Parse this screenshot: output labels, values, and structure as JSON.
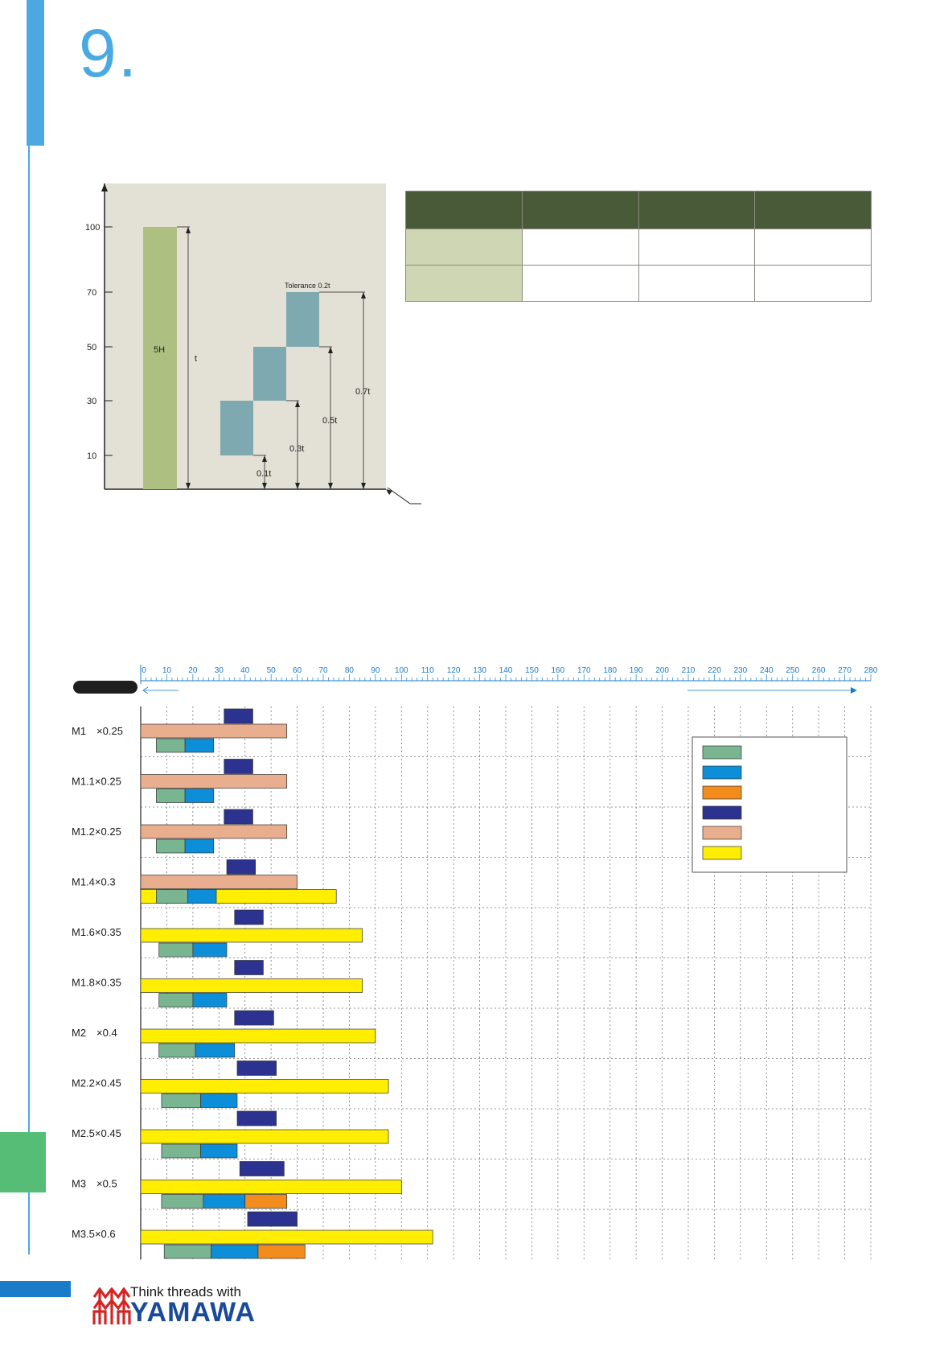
{
  "chapter": {
    "number": "9."
  },
  "colors": {
    "accent_blue": "#4aa9e3",
    "side_tab_green": "#56bd76",
    "table_header_bg": "#485a38",
    "table_row_head_bg": "#cfd6b3",
    "diagram_bg": "#e3e1d6",
    "diagram_5h_bar": "#aec081",
    "diagram_tol_block": "#7fa9b0",
    "bar_green": "#7ab592",
    "bar_blue": "#0d8ed8",
    "bar_orange": "#f28c1c",
    "bar_navy": "#2c3290",
    "bar_salmon": "#e9ae8d",
    "bar_yellow": "#ffee00",
    "logo_red": "#d42525",
    "logo_blue": "#1a4a9a"
  },
  "diagram": {
    "y_ticks": [
      "100",
      "70",
      "50",
      "30",
      "10"
    ],
    "bar_label": "5H",
    "t_label": "t",
    "tolerance_label": "Tolerance 0.2t",
    "dim_labels": [
      "0.1t",
      "0.3t",
      "0.5t",
      "0.7t"
    ]
  },
  "spec_table": {
    "header": [
      "",
      "",
      "",
      ""
    ],
    "rows": [
      [
        "",
        "",
        "",
        ""
      ],
      [
        "",
        "",
        "",
        ""
      ]
    ]
  },
  "ruler": {
    "ticks": [
      "0",
      "10",
      "20",
      "30",
      "40",
      "50",
      "60",
      "70",
      "80",
      "90",
      "100",
      "110",
      "120",
      "130",
      "140",
      "150",
      "160",
      "170",
      "180",
      "190",
      "200",
      "210",
      "220",
      "230",
      "240",
      "250",
      "260",
      "270",
      "280"
    ]
  },
  "legend": {
    "swatches": [
      "#7ab592",
      "#0d8ed8",
      "#f28c1c",
      "#2c3290",
      "#e9ae8d",
      "#ffee00"
    ]
  },
  "chart_data": {
    "type": "bar",
    "x_axis": {
      "min": 0,
      "max": 280,
      "step": 10
    },
    "series_colors": {
      "green": "#7ab592",
      "blue": "#0d8ed8",
      "orange": "#f28c1c",
      "navy": "#2c3290",
      "salmon": "#e9ae8d",
      "yellow": "#ffee00"
    },
    "categories": [
      "M1　×0.25",
      "M1.1×0.25",
      "M1.2×0.25",
      "M1.4×0.3",
      "M1.6×0.35",
      "M1.8×0.35",
      "M2　×0.4",
      "M2.2×0.45",
      "M2.5×0.45",
      "M3　×0.5",
      "M3.5×0.6"
    ],
    "rows": [
      {
        "navy": [
          32,
          43
        ],
        "salmon": [
          0,
          56
        ],
        "green": [
          6,
          17
        ],
        "blue": [
          17,
          28
        ]
      },
      {
        "navy": [
          32,
          43
        ],
        "salmon": [
          0,
          56
        ],
        "green": [
          6,
          17
        ],
        "blue": [
          17,
          28
        ]
      },
      {
        "navy": [
          32,
          43
        ],
        "salmon": [
          0,
          56
        ],
        "green": [
          6,
          17
        ],
        "blue": [
          17,
          28
        ]
      },
      {
        "navy": [
          33,
          44
        ],
        "salmon": [
          0,
          60
        ],
        "yellow": [
          0,
          75
        ],
        "green": [
          6,
          18
        ],
        "blue": [
          18,
          29
        ]
      },
      {
        "navy": [
          36,
          47
        ],
        "yellow": [
          0,
          85
        ],
        "green": [
          7,
          20
        ],
        "blue": [
          20,
          33
        ]
      },
      {
        "navy": [
          36,
          47
        ],
        "yellow": [
          0,
          85
        ],
        "green": [
          7,
          20
        ],
        "blue": [
          20,
          33
        ]
      },
      {
        "navy": [
          36,
          51
        ],
        "yellow": [
          0,
          90
        ],
        "green": [
          7,
          21
        ],
        "blue": [
          21,
          36
        ]
      },
      {
        "navy": [
          37,
          52
        ],
        "yellow": [
          0,
          95
        ],
        "green": [
          8,
          23
        ],
        "blue": [
          23,
          37
        ]
      },
      {
        "navy": [
          37,
          52
        ],
        "yellow": [
          0,
          95
        ],
        "green": [
          8,
          23
        ],
        "blue": [
          23,
          37
        ]
      },
      {
        "navy": [
          38,
          55
        ],
        "yellow": [
          0,
          100
        ],
        "green": [
          8,
          24
        ],
        "blue": [
          24,
          40
        ],
        "orange": [
          40,
          56
        ]
      },
      {
        "navy": [
          41,
          60
        ],
        "yellow": [
          0,
          112
        ],
        "green": [
          9,
          27
        ],
        "blue": [
          27,
          45
        ],
        "orange": [
          45,
          63
        ]
      }
    ]
  },
  "logo": {
    "tagline": "Think threads with",
    "name": "YAMAWA"
  }
}
